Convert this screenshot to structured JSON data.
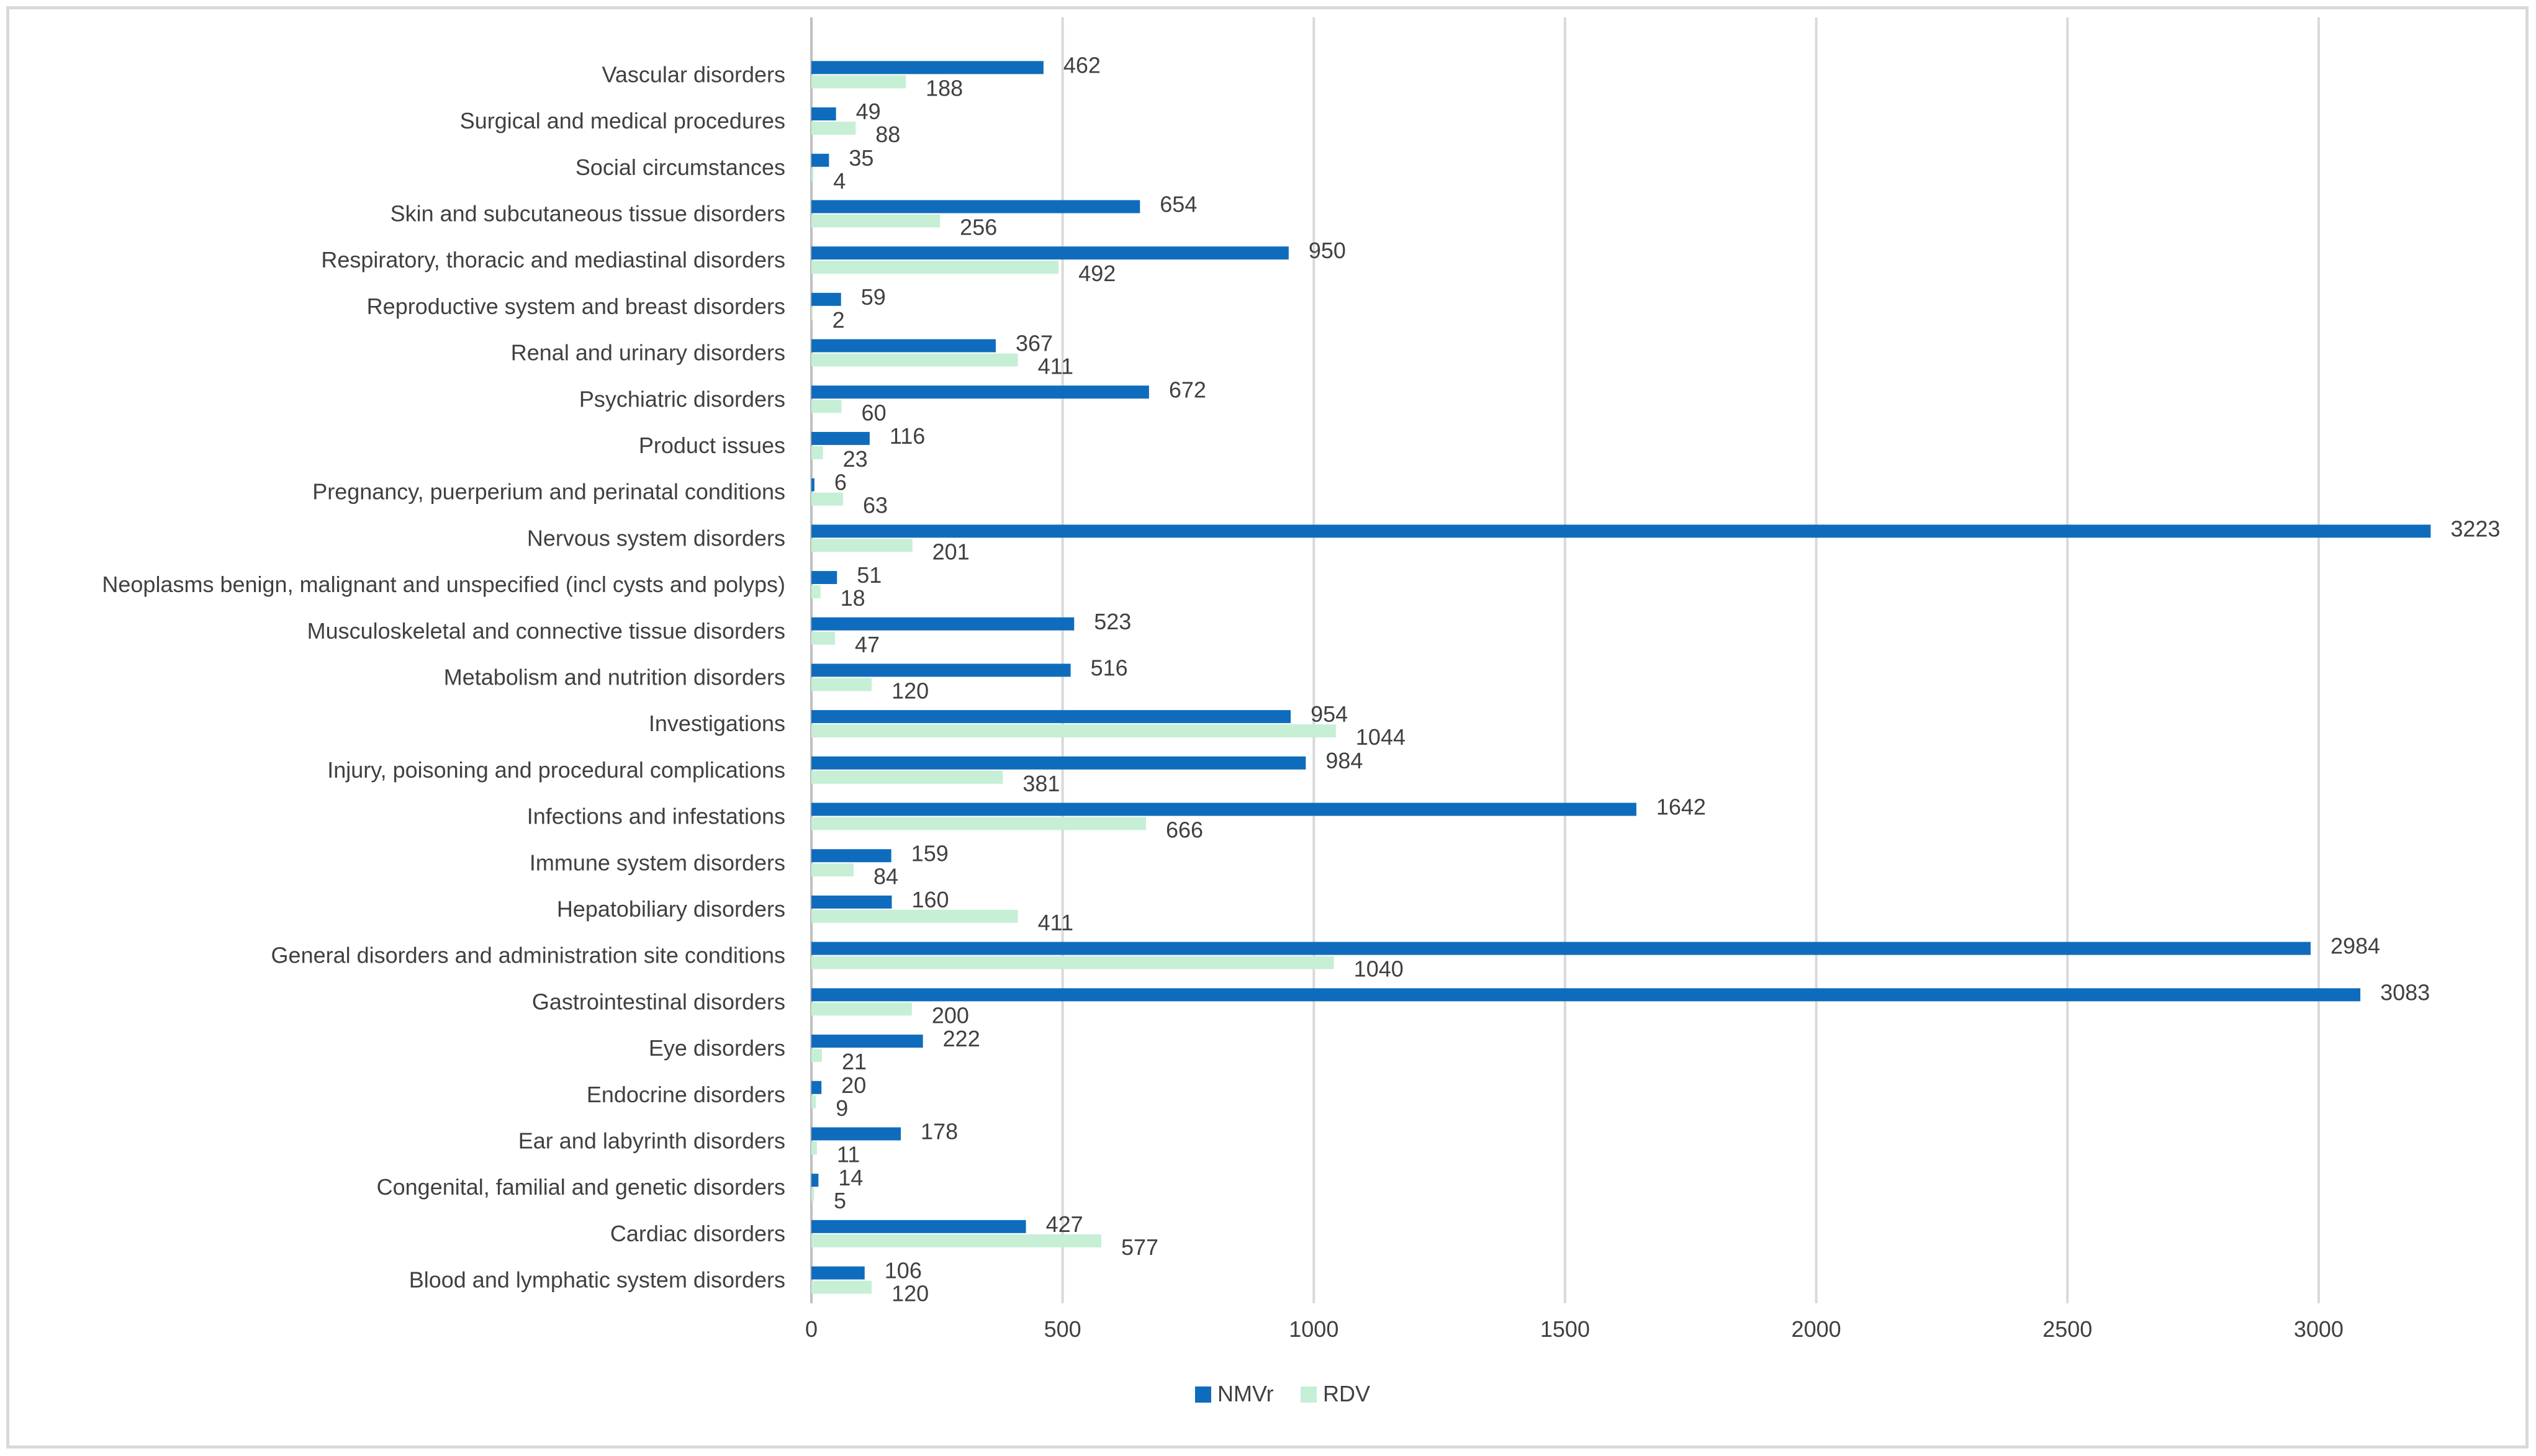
{
  "chart_data": {
    "type": "bar",
    "orientation": "horizontal",
    "title": "",
    "xlabel": "",
    "ylabel": "",
    "xlim": [
      0,
      3300
    ],
    "xticks": [
      0,
      500,
      1000,
      1500,
      2000,
      2500,
      3000
    ],
    "grid": true,
    "legend_position": "bottom",
    "categories": [
      "Vascular disorders",
      "Surgical and medical procedures",
      "Social circumstances",
      "Skin and subcutaneous tissue disorders",
      "Respiratory, thoracic and mediastinal disorders",
      "Reproductive system and breast disorders",
      "Renal and urinary disorders",
      "Psychiatric disorders",
      "Product issues",
      "Pregnancy, puerperium and perinatal conditions",
      "Nervous system disorders",
      "Neoplasms benign, malignant and unspecified (incl cysts and polyps)",
      "Musculoskeletal and connective tissue disorders",
      "Metabolism and nutrition disorders",
      "Investigations",
      "Injury, poisoning and procedural complications",
      "Infections and infestations",
      "Immune system disorders",
      "Hepatobiliary disorders",
      "General disorders and administration site conditions",
      "Gastrointestinal disorders",
      "Eye disorders",
      "Endocrine disorders",
      "Ear and labyrinth disorders",
      "Congenital, familial and genetic disorders",
      "Cardiac disorders",
      "Blood and lymphatic system disorders"
    ],
    "series": [
      {
        "name": "NMVr",
        "color": "#0f6cbd",
        "values": [
          462,
          49,
          35,
          654,
          950,
          59,
          367,
          672,
          116,
          6,
          3223,
          51,
          523,
          516,
          954,
          984,
          1642,
          159,
          160,
          2984,
          3083,
          222,
          20,
          178,
          14,
          427,
          106
        ]
      },
      {
        "name": "RDV",
        "color": "#c6efd6",
        "values": [
          188,
          88,
          4,
          256,
          492,
          2,
          411,
          60,
          23,
          63,
          201,
          18,
          47,
          120,
          1044,
          381,
          666,
          84,
          411,
          1040,
          200,
          21,
          9,
          11,
          5,
          577,
          120
        ]
      }
    ]
  },
  "colors": {
    "gridline": "#d9d9d9",
    "axis": "#bfbfbf",
    "text": "#404040",
    "frame": "#d9d9d9"
  }
}
